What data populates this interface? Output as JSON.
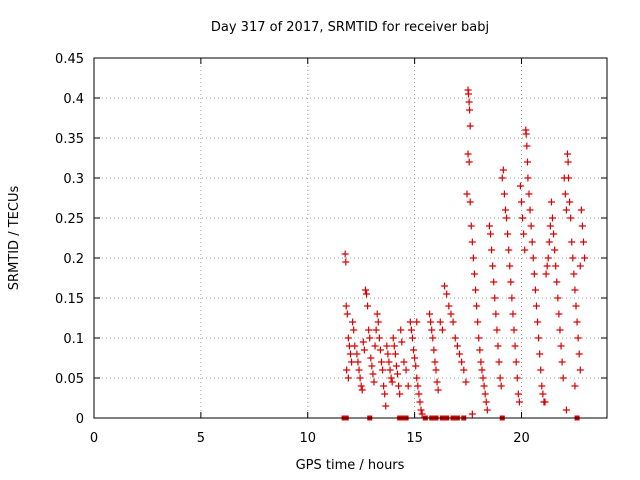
{
  "chart_data": {
    "type": "scatter",
    "title": "Day 317 of 2017, SRMTID for receiver babj",
    "xlabel": "GPS time / hours",
    "ylabel": "SRMTID / TECUs",
    "xlim": [
      0,
      24
    ],
    "ylim": [
      0,
      0.45
    ],
    "xticks": [
      0,
      5,
      10,
      15,
      20
    ],
    "xtick_labels": [
      "0",
      "5",
      "10",
      "15",
      "20"
    ],
    "yticks": [
      0,
      0.05,
      0.1,
      0.15,
      0.2,
      0.25,
      0.3,
      0.35,
      0.4,
      0.45
    ],
    "ytick_labels": [
      "0",
      "0.05",
      "0.1",
      "0.15",
      "0.2",
      "0.25",
      "0.3",
      "0.35",
      "0.4",
      "0.45"
    ],
    "grid": true,
    "marker": "plus",
    "color": "#dd0000",
    "series": [
      {
        "name": "SRMTID",
        "points": [
          [
            11.75,
            0.205
          ],
          [
            11.78,
            0.195
          ],
          [
            11.8,
            0.14
          ],
          [
            11.85,
            0.13
          ],
          [
            11.9,
            0.1
          ],
          [
            11.95,
            0.09
          ],
          [
            12.0,
            0.08
          ],
          [
            12.05,
            0.07
          ],
          [
            11.82,
            0.06
          ],
          [
            11.9,
            0.05
          ],
          [
            12.1,
            0.12
          ],
          [
            12.15,
            0.11
          ],
          [
            12.2,
            0.09
          ],
          [
            12.3,
            0.08
          ],
          [
            12.35,
            0.07
          ],
          [
            12.4,
            0.06
          ],
          [
            12.45,
            0.05
          ],
          [
            12.5,
            0.04
          ],
          [
            12.55,
            0.035
          ],
          [
            12.6,
            0.095
          ],
          [
            12.65,
            0.085
          ],
          [
            12.7,
            0.16
          ],
          [
            12.75,
            0.155
          ],
          [
            12.8,
            0.14
          ],
          [
            12.85,
            0.11
          ],
          [
            12.9,
            0.1
          ],
          [
            12.95,
            0.075
          ],
          [
            13.0,
            0.065
          ],
          [
            13.05,
            0.055
          ],
          [
            13.1,
            0.045
          ],
          [
            13.15,
            0.09
          ],
          [
            13.2,
            0.11
          ],
          [
            13.25,
            0.13
          ],
          [
            13.3,
            0.12
          ],
          [
            13.35,
            0.1
          ],
          [
            13.4,
            0.085
          ],
          [
            13.45,
            0.07
          ],
          [
            13.5,
            0.06
          ],
          [
            13.55,
            0.04
          ],
          [
            13.6,
            0.03
          ],
          [
            13.65,
            0.015
          ],
          [
            13.7,
            0.09
          ],
          [
            13.75,
            0.08
          ],
          [
            13.8,
            0.07
          ],
          [
            13.85,
            0.06
          ],
          [
            13.9,
            0.05
          ],
          [
            13.95,
            0.045
          ],
          [
            14.0,
            0.1
          ],
          [
            14.05,
            0.09
          ],
          [
            14.1,
            0.08
          ],
          [
            14.15,
            0.065
          ],
          [
            14.2,
            0.055
          ],
          [
            14.25,
            0.04
          ],
          [
            14.3,
            0.03
          ],
          [
            14.35,
            0.11
          ],
          [
            14.4,
            0.095
          ],
          [
            14.5,
            0.07
          ],
          [
            14.6,
            0.06
          ],
          [
            14.7,
            0.04
          ],
          [
            14.8,
            0.12
          ],
          [
            14.85,
            0.11
          ],
          [
            14.9,
            0.1
          ],
          [
            14.95,
            0.085
          ],
          [
            15.0,
            0.075
          ],
          [
            15.05,
            0.065
          ],
          [
            15.1,
            0.05
          ],
          [
            15.15,
            0.04
          ],
          [
            15.2,
            0.03
          ],
          [
            15.25,
            0.02
          ],
          [
            15.3,
            0.01
          ],
          [
            15.35,
            0.005
          ],
          [
            15.1,
            0.12
          ],
          [
            15.7,
            0.13
          ],
          [
            15.75,
            0.12
          ],
          [
            15.8,
            0.11
          ],
          [
            15.85,
            0.1
          ],
          [
            15.9,
            0.085
          ],
          [
            15.95,
            0.07
          ],
          [
            16.0,
            0.06
          ],
          [
            16.05,
            0.045
          ],
          [
            16.1,
            0.035
          ],
          [
            16.2,
            0.12
          ],
          [
            16.3,
            0.11
          ],
          [
            16.4,
            0.165
          ],
          [
            16.5,
            0.155
          ],
          [
            16.6,
            0.14
          ],
          [
            16.7,
            0.13
          ],
          [
            16.8,
            0.12
          ],
          [
            16.9,
            0.1
          ],
          [
            17.0,
            0.09
          ],
          [
            17.1,
            0.08
          ],
          [
            17.2,
            0.07
          ],
          [
            17.3,
            0.06
          ],
          [
            17.4,
            0.045
          ],
          [
            17.5,
            0.41
          ],
          [
            17.52,
            0.405
          ],
          [
            17.55,
            0.395
          ],
          [
            17.57,
            0.385
          ],
          [
            17.6,
            0.365
          ],
          [
            17.5,
            0.33
          ],
          [
            17.55,
            0.32
          ],
          [
            17.45,
            0.28
          ],
          [
            17.6,
            0.27
          ],
          [
            17.65,
            0.24
          ],
          [
            17.7,
            0.22
          ],
          [
            17.75,
            0.2
          ],
          [
            17.8,
            0.18
          ],
          [
            17.85,
            0.16
          ],
          [
            17.9,
            0.14
          ],
          [
            17.95,
            0.12
          ],
          [
            18.0,
            0.1
          ],
          [
            18.05,
            0.085
          ],
          [
            18.1,
            0.07
          ],
          [
            18.15,
            0.06
          ],
          [
            18.2,
            0.05
          ],
          [
            18.25,
            0.04
          ],
          [
            18.3,
            0.03
          ],
          [
            18.35,
            0.02
          ],
          [
            18.4,
            0.01
          ],
          [
            17.7,
            0.005
          ],
          [
            18.5,
            0.24
          ],
          [
            18.55,
            0.23
          ],
          [
            18.6,
            0.21
          ],
          [
            18.65,
            0.19
          ],
          [
            18.7,
            0.17
          ],
          [
            18.75,
            0.15
          ],
          [
            18.8,
            0.13
          ],
          [
            18.85,
            0.11
          ],
          [
            18.9,
            0.09
          ],
          [
            18.95,
            0.07
          ],
          [
            19.0,
            0.05
          ],
          [
            19.05,
            0.04
          ],
          [
            19.1,
            0.3
          ],
          [
            19.15,
            0.31
          ],
          [
            19.2,
            0.28
          ],
          [
            19.25,
            0.26
          ],
          [
            19.3,
            0.25
          ],
          [
            19.35,
            0.23
          ],
          [
            19.4,
            0.21
          ],
          [
            19.45,
            0.19
          ],
          [
            19.5,
            0.17
          ],
          [
            19.55,
            0.15
          ],
          [
            19.6,
            0.13
          ],
          [
            19.65,
            0.11
          ],
          [
            19.7,
            0.09
          ],
          [
            19.75,
            0.07
          ],
          [
            19.8,
            0.05
          ],
          [
            19.85,
            0.03
          ],
          [
            19.9,
            0.02
          ],
          [
            19.95,
            0.29
          ],
          [
            20.0,
            0.27
          ],
          [
            20.05,
            0.25
          ],
          [
            20.1,
            0.23
          ],
          [
            20.15,
            0.21
          ],
          [
            20.2,
            0.36
          ],
          [
            20.22,
            0.355
          ],
          [
            20.25,
            0.34
          ],
          [
            20.28,
            0.32
          ],
          [
            20.3,
            0.3
          ],
          [
            20.35,
            0.28
          ],
          [
            20.4,
            0.26
          ],
          [
            20.45,
            0.24
          ],
          [
            20.5,
            0.22
          ],
          [
            20.55,
            0.2
          ],
          [
            20.6,
            0.18
          ],
          [
            20.65,
            0.16
          ],
          [
            20.7,
            0.14
          ],
          [
            20.75,
            0.12
          ],
          [
            20.8,
            0.1
          ],
          [
            20.85,
            0.08
          ],
          [
            20.9,
            0.06
          ],
          [
            20.95,
            0.04
          ],
          [
            21.0,
            0.03
          ],
          [
            21.05,
            0.02
          ],
          [
            21.1,
            0.02
          ],
          [
            21.15,
            0.18
          ],
          [
            21.2,
            0.19
          ],
          [
            21.25,
            0.2
          ],
          [
            21.3,
            0.22
          ],
          [
            21.35,
            0.24
          ],
          [
            21.4,
            0.27
          ],
          [
            21.45,
            0.25
          ],
          [
            21.5,
            0.23
          ],
          [
            21.55,
            0.21
          ],
          [
            21.6,
            0.19
          ],
          [
            21.65,
            0.17
          ],
          [
            21.7,
            0.15
          ],
          [
            21.75,
            0.13
          ],
          [
            21.8,
            0.11
          ],
          [
            21.85,
            0.09
          ],
          [
            21.9,
            0.07
          ],
          [
            21.95,
            0.05
          ],
          [
            22.0,
            0.3
          ],
          [
            22.05,
            0.28
          ],
          [
            22.1,
            0.26
          ],
          [
            22.15,
            0.33
          ],
          [
            22.18,
            0.32
          ],
          [
            22.2,
            0.3
          ],
          [
            22.25,
            0.27
          ],
          [
            22.3,
            0.25
          ],
          [
            22.35,
            0.22
          ],
          [
            22.4,
            0.2
          ],
          [
            22.45,
            0.18
          ],
          [
            22.5,
            0.16
          ],
          [
            22.55,
            0.14
          ],
          [
            22.6,
            0.12
          ],
          [
            22.65,
            0.1
          ],
          [
            22.7,
            0.08
          ],
          [
            22.75,
            0.06
          ],
          [
            22.5,
            0.04
          ],
          [
            22.1,
            0.01
          ],
          [
            22.8,
            0.26
          ],
          [
            22.85,
            0.24
          ],
          [
            22.9,
            0.22
          ],
          [
            22.95,
            0.2
          ],
          [
            22.75,
            0.19
          ]
        ]
      }
    ],
    "zero_markers_x": [
      11.7,
      11.8,
      12.9,
      14.3,
      14.4,
      14.5,
      14.6,
      15.5,
      15.8,
      16.0,
      16.3,
      16.5,
      16.8,
      17.0,
      17.3,
      19.1,
      22.6
    ]
  }
}
